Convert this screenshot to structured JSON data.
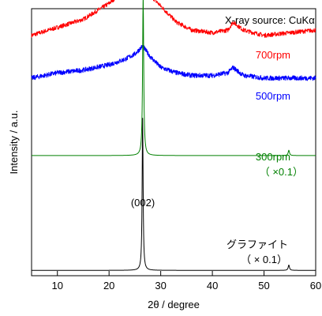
{
  "chart_data": {
    "type": "line",
    "title": "",
    "xlabel": "2θ / degree",
    "ylabel": "Intensity / a.u.",
    "xlim": [
      5,
      60
    ],
    "x_ticks": [
      10,
      20,
      30,
      40,
      50,
      60
    ],
    "y_ticks_shown": false,
    "grid": false,
    "legend": "none",
    "annotations": {
      "source": "X-ray source: CuKα",
      "peak_label": "(002)"
    },
    "series": [
      {
        "name": "700rpm",
        "color": "#ff0000",
        "label_lines": [
          "700rpm"
        ],
        "x": [
          5,
          10,
          15,
          20,
          23,
          25,
          27,
          30,
          33,
          36,
          40,
          43,
          44,
          46,
          50,
          55,
          60
        ],
        "y": [
          0.9,
          0.93,
          0.96,
          1.02,
          1.07,
          1.09,
          1.07,
          1.01,
          0.95,
          0.92,
          0.91,
          0.92,
          0.95,
          0.92,
          0.9,
          0.91,
          0.92
        ],
        "peaks": [],
        "noise": 0.008
      },
      {
        "name": "500rpm",
        "color": "#0000ff",
        "label_lines": [
          "500rpm"
        ],
        "x": [
          5,
          10,
          15,
          20,
          23,
          25,
          26.5,
          28,
          30,
          33,
          36,
          40,
          43,
          44,
          46,
          50,
          55,
          60
        ],
        "y": [
          0.74,
          0.76,
          0.77,
          0.79,
          0.81,
          0.83,
          0.86,
          0.82,
          0.78,
          0.76,
          0.75,
          0.75,
          0.76,
          0.78,
          0.75,
          0.74,
          0.74,
          0.74
        ],
        "peaks": [],
        "noise": 0.009
      },
      {
        "name": "300rpm",
        "color": "#008000",
        "label_lines": [
          "300rpm",
          "（ ×0.1）"
        ],
        "x": [
          5,
          60
        ],
        "y": [
          0.45,
          0.45
        ],
        "peaks": [
          {
            "x": 26.6,
            "height": 0.6,
            "width": 0.25
          },
          {
            "x": 54.8,
            "height": 0.02,
            "width": 0.3
          }
        ],
        "noise": 0.0
      },
      {
        "name": "グラファイト",
        "color": "#000000",
        "label_lines": [
          "グラファイト",
          "（ × 0.1）"
        ],
        "x": [
          5,
          60
        ],
        "y": [
          0.02,
          0.02
        ],
        "peaks": [
          {
            "x": 26.5,
            "height": 0.57,
            "width": 0.22
          },
          {
            "x": 54.8,
            "height": 0.02,
            "width": 0.3
          }
        ],
        "noise": 0.0
      }
    ]
  }
}
